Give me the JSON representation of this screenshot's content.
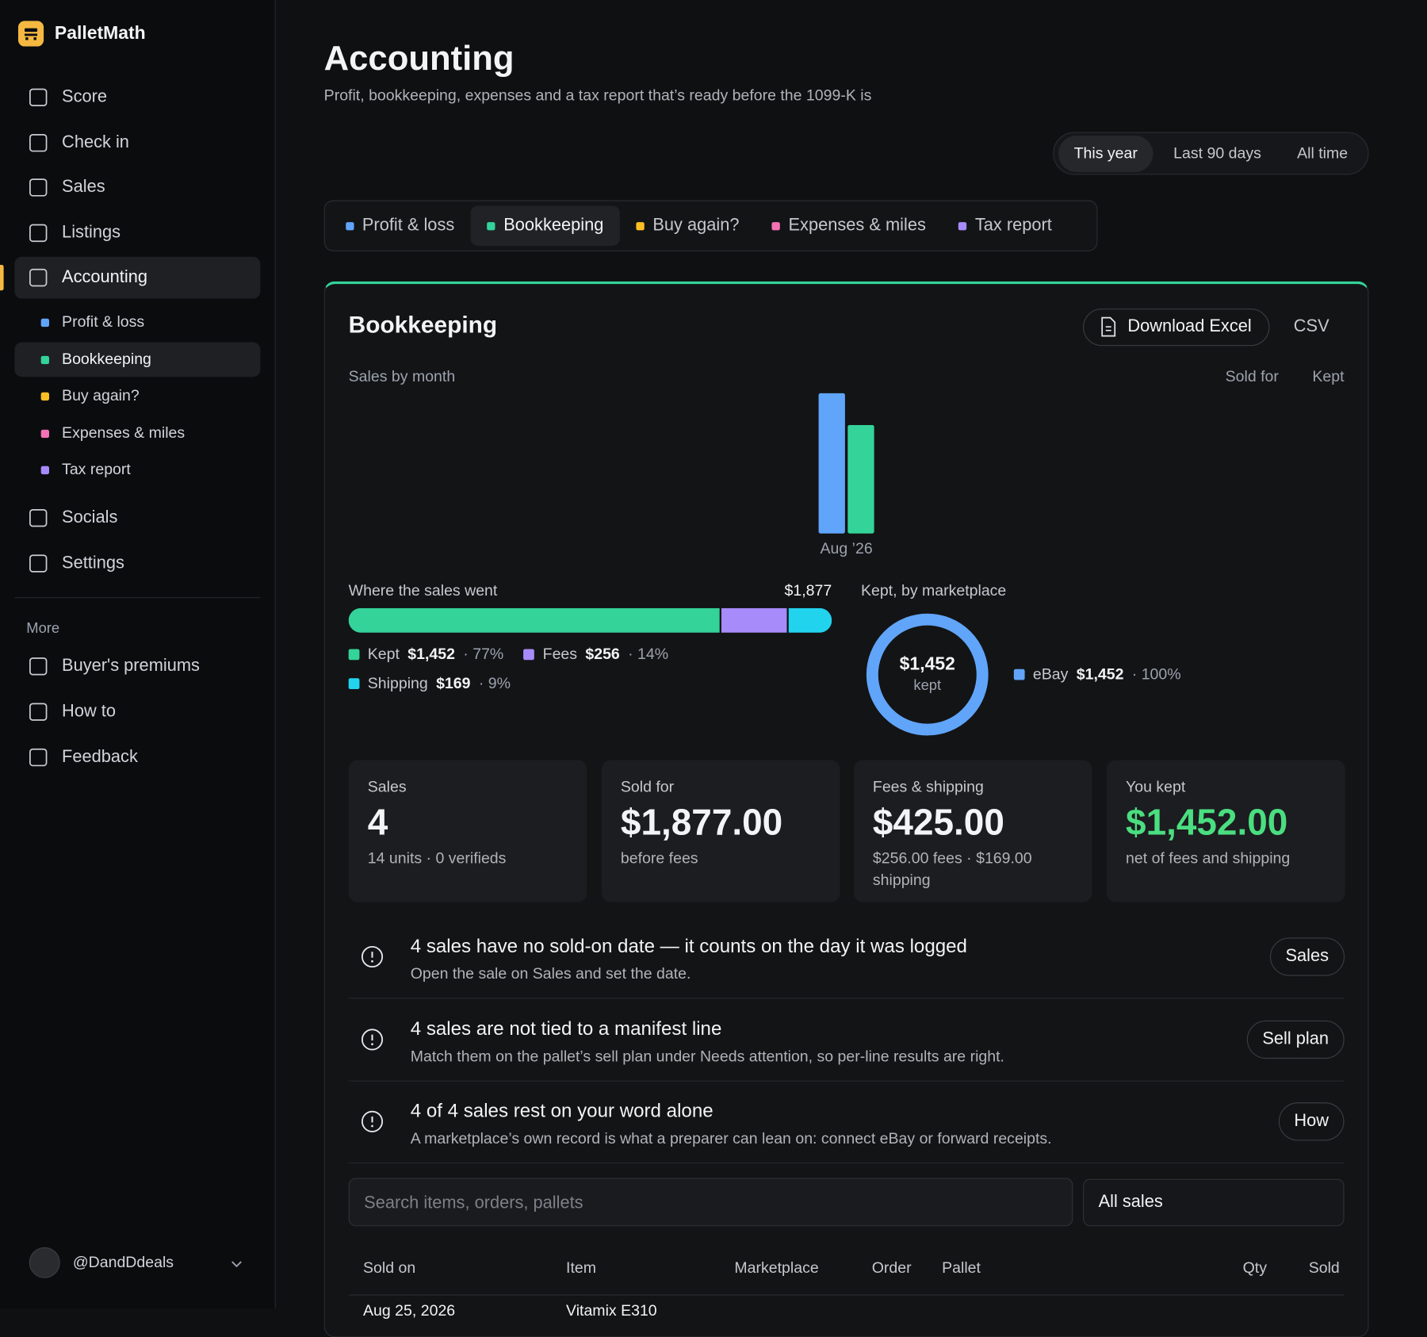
{
  "sidebar": {
    "brand": "PalletMath",
    "nav": [
      "Score",
      "Check in",
      "Sales",
      "Listings",
      "Accounting"
    ],
    "active": "Accounting",
    "nav_bottom": [
      "Socials",
      "Settings"
    ],
    "more_title": "More",
    "more": [
      "Buyer's premiums",
      "How to",
      "Feedback"
    ],
    "user": "@DandDdeals"
  },
  "header": {
    "title": "Accounting",
    "subtitle": "Profit, bookkeeping, expenses and a tax report that’s ready before the 1099-K is"
  },
  "range": {
    "options": [
      "This year",
      "Last 90 days",
      "All time"
    ],
    "active": "This year"
  },
  "sections": [
    {
      "label": "Profit & loss",
      "color": "#60a5fa"
    },
    {
      "label": "Bookkeeping",
      "color": "#34d399"
    },
    {
      "label": "Buy again?",
      "color": "#fbbf24"
    },
    {
      "label": "Expenses & miles",
      "color": "#f472b6"
    },
    {
      "label": "Tax report",
      "color": "#a78bfa"
    }
  ],
  "active_section": "Bookkeeping",
  "panel": {
    "title": "Bookkeeping",
    "download": "Download Excel",
    "csv": "CSV",
    "accent": "#34d399"
  },
  "sales_by_month": {
    "type": "bar",
    "title": "Sales by month",
    "categories": [
      "Aug ’26"
    ],
    "series": [
      {
        "name": "Sold for",
        "color": "#60a5fa",
        "values": [
          1877
        ]
      },
      {
        "name": "Kept",
        "color": "#34d399",
        "values": [
          1452
        ]
      }
    ]
  },
  "where": {
    "title": "Where the sales went",
    "total": 1877,
    "total_label": "$1,877",
    "segments": [
      {
        "name": "Kept",
        "color": "#34d399",
        "value": 1452,
        "value_label": "$1,452",
        "share": 77,
        "share_label": "· 77%"
      },
      {
        "name": "Fees",
        "color": "#a78bfa",
        "value": 256,
        "value_label": "$256",
        "share": 14,
        "share_label": "· 14%"
      },
      {
        "name": "Shipping",
        "color": "#22d3ee",
        "value": 169,
        "value_label": "$169",
        "share": 9,
        "share_label": "· 9%"
      }
    ]
  },
  "marketplace": {
    "type": "pie",
    "title": "Kept, by marketplace",
    "center_label": "$1,452",
    "center_caption": "kept",
    "slices": [
      {
        "name": "eBay",
        "color": "#60a5fa",
        "value": 1452,
        "value_label": "$1,452",
        "share": 100,
        "share_label": "· 100%"
      }
    ]
  },
  "stats": [
    {
      "label": "Sales",
      "value": "4",
      "note": "14 units · 0 verifieds",
      "color": "#f3f4f6"
    },
    {
      "label": "Sold for",
      "value": "$1,877.00",
      "note": "before fees",
      "color": "#f3f4f6"
    },
    {
      "label": "Fees & shipping",
      "value": "$425.00",
      "note": "$256.00 fees · $169.00 shipping",
      "color": "#f3f4f6"
    },
    {
      "label": "You kept",
      "value": "$1,452.00",
      "note": "net of fees and shipping",
      "color": "#4ade80"
    }
  ],
  "alerts": [
    {
      "title": "4 sales have no sold-on date — it counts on the day it was logged",
      "text": "Open the sale on Sales and set the date.",
      "action": "Sales"
    },
    {
      "title": "4 sales are not tied to a manifest line",
      "text": "Match them on the pallet’s sell plan under Needs attention, so per-line results are right.",
      "action": "Sell plan"
    },
    {
      "title": "4 of 4 sales rest on your word alone",
      "text": "A marketplace’s own record is what a preparer can lean on: connect eBay or forward receipts.",
      "action": "How"
    }
  ],
  "search_placeholder": "Search items, orders, pallets",
  "filter": "All sales",
  "table": {
    "columns": [
      "Sold on",
      "Item",
      "Marketplace",
      "Order",
      "Pallet",
      "Qty",
      "Sold"
    ],
    "rows": [
      [
        "Aug 25, 2026",
        "Vitamix E310"
      ]
    ]
  }
}
